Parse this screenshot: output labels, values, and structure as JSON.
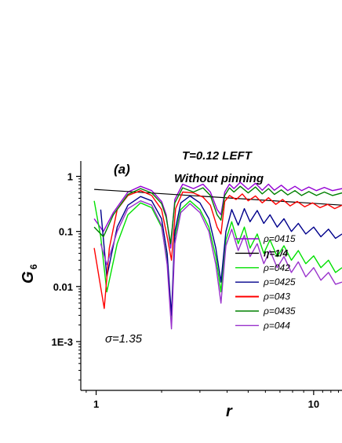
{
  "chart_data": {
    "type": "line",
    "panel_label": "(a)",
    "title_line1": "T=0.12 LEFT",
    "title_line2": "Without pinning",
    "xlabel_main": "r",
    "ylabel_main": "G",
    "ylabel_sub": "6",
    "annotation": "σ=1.35",
    "x_scale": "log",
    "y_scale": "log",
    "xlim": [
      0.85,
      13.5
    ],
    "ylim": [
      0.00013,
      1.9
    ],
    "x_ticks": [
      {
        "value": 1,
        "label": "1"
      },
      {
        "value": 10,
        "label": "10"
      }
    ],
    "y_ticks": [
      {
        "value": 1,
        "label": "1"
      },
      {
        "value": 0.1,
        "label": "0.1"
      },
      {
        "value": 0.01,
        "label": "0.01"
      },
      {
        "value": 0.001,
        "label": "1E-3"
      }
    ],
    "legend_position": "bottom-right",
    "series": [
      {
        "name": "ρ=0415",
        "color": "#9400d3",
        "x": [
          0.98,
          1.08,
          1.2,
          1.4,
          1.6,
          1.8,
          2.0,
          2.1,
          2.2,
          2.3,
          2.5,
          2.8,
          3.1,
          3.35,
          3.6,
          3.75,
          3.9,
          4.1,
          4.3,
          4.6,
          5.0,
          5.4,
          5.8,
          6.2,
          6.6,
          7.1,
          7.6,
          8.2,
          8.8,
          9.5,
          10.3,
          11.2,
          12.2,
          13.5
        ],
        "y": [
          0.17,
          0.1,
          0.22,
          0.52,
          0.66,
          0.55,
          0.35,
          0.2,
          0.05,
          0.38,
          0.72,
          0.6,
          0.72,
          0.52,
          0.25,
          0.2,
          0.52,
          0.72,
          0.6,
          0.78,
          0.58,
          0.75,
          0.56,
          0.72,
          0.56,
          0.69,
          0.55,
          0.66,
          0.55,
          0.64,
          0.55,
          0.63,
          0.55,
          0.6
        ]
      },
      {
        "name": "η=1/4",
        "color": "#000000",
        "x": [
          0.98,
          13.5
        ],
        "y": [
          0.58,
          0.3
        ]
      },
      {
        "name": "ρ=042",
        "color": "#00e000",
        "x": [
          0.98,
          1.05,
          1.12,
          1.25,
          1.4,
          1.6,
          1.8,
          2.0,
          2.12,
          2.22,
          2.3,
          2.45,
          2.7,
          3.0,
          3.3,
          3.55,
          3.75,
          3.95,
          4.2,
          4.5,
          4.8,
          5.1,
          5.5,
          5.9,
          6.3,
          6.8,
          7.3,
          7.9,
          8.5,
          9.2,
          10.0,
          10.8,
          11.7,
          12.6,
          13.5
        ],
        "y": [
          0.36,
          0.08,
          0.008,
          0.06,
          0.2,
          0.33,
          0.27,
          0.12,
          0.03,
          0.0025,
          0.08,
          0.25,
          0.36,
          0.25,
          0.12,
          0.035,
          0.008,
          0.07,
          0.15,
          0.06,
          0.12,
          0.05,
          0.09,
          0.04,
          0.07,
          0.035,
          0.055,
          0.03,
          0.045,
          0.026,
          0.036,
          0.022,
          0.03,
          0.018,
          0.022
        ]
      },
      {
        "name": "ρ=0425",
        "color": "#00008b",
        "x": [
          1.05,
          1.12,
          1.25,
          1.4,
          1.6,
          1.8,
          2.0,
          2.12,
          2.22,
          2.3,
          2.45,
          2.7,
          3.0,
          3.3,
          3.55,
          3.75,
          3.95,
          4.2,
          4.5,
          4.8,
          5.1,
          5.5,
          5.9,
          6.3,
          6.8,
          7.3,
          7.9,
          8.5,
          9.2,
          10.0,
          10.8,
          11.7,
          12.6,
          13.5
        ],
        "y": [
          0.25,
          0.015,
          0.12,
          0.3,
          0.43,
          0.36,
          0.17,
          0.04,
          0.003,
          0.1,
          0.33,
          0.44,
          0.33,
          0.17,
          0.05,
          0.012,
          0.1,
          0.25,
          0.13,
          0.26,
          0.15,
          0.24,
          0.14,
          0.2,
          0.12,
          0.17,
          0.1,
          0.14,
          0.09,
          0.12,
          0.08,
          0.11,
          0.075,
          0.09
        ]
      },
      {
        "name": "ρ=043",
        "color": "#ff0000",
        "x": [
          0.98,
          1.04,
          1.09,
          1.15,
          1.25,
          1.4,
          1.6,
          1.8,
          2.0,
          2.12,
          2.22,
          2.32,
          2.5,
          2.8,
          3.1,
          3.35,
          3.6,
          3.75,
          3.9,
          4.1,
          4.4,
          4.7,
          5.0,
          5.4,
          5.8,
          6.2,
          6.7,
          7.2,
          7.8,
          8.4,
          9.1,
          9.9,
          10.7,
          11.6,
          12.5,
          13.5
        ],
        "y": [
          0.05,
          0.012,
          0.004,
          0.05,
          0.25,
          0.45,
          0.55,
          0.45,
          0.25,
          0.08,
          0.03,
          0.26,
          0.52,
          0.5,
          0.42,
          0.3,
          0.12,
          0.09,
          0.35,
          0.45,
          0.38,
          0.48,
          0.36,
          0.44,
          0.33,
          0.41,
          0.31,
          0.38,
          0.29,
          0.35,
          0.28,
          0.33,
          0.27,
          0.31,
          0.26,
          0.3
        ]
      },
      {
        "name": "ρ=0435",
        "color": "#008000",
        "x": [
          0.98,
          1.08,
          1.2,
          1.4,
          1.6,
          1.8,
          2.0,
          2.1,
          2.2,
          2.3,
          2.5,
          2.8,
          3.1,
          3.35,
          3.6,
          3.75,
          3.9,
          4.1,
          4.3,
          4.6,
          5.0,
          5.4,
          5.8,
          6.2,
          6.6,
          7.1,
          7.6,
          8.2,
          8.8,
          9.5,
          10.3,
          11.2,
          12.2,
          13.5
        ],
        "y": [
          0.12,
          0.08,
          0.2,
          0.47,
          0.6,
          0.5,
          0.32,
          0.18,
          0.06,
          0.33,
          0.62,
          0.52,
          0.62,
          0.45,
          0.2,
          0.16,
          0.45,
          0.62,
          0.52,
          0.66,
          0.5,
          0.64,
          0.48,
          0.6,
          0.47,
          0.57,
          0.46,
          0.55,
          0.45,
          0.53,
          0.45,
          0.52,
          0.45,
          0.5
        ]
      },
      {
        "name": "ρ=044",
        "color": "#9932cc",
        "x": [
          1.05,
          1.12,
          1.25,
          1.4,
          1.6,
          1.8,
          2.0,
          2.12,
          2.22,
          2.3,
          2.45,
          2.7,
          3.0,
          3.3,
          3.55,
          3.75,
          3.95,
          4.2,
          4.5,
          4.8,
          5.1,
          5.5,
          5.9,
          6.3,
          6.8,
          7.3,
          7.9,
          8.5,
          9.2,
          10.0,
          10.8,
          11.7,
          12.6,
          13.5
        ],
        "y": [
          0.06,
          0.025,
          0.1,
          0.26,
          0.36,
          0.3,
          0.13,
          0.025,
          0.0017,
          0.06,
          0.22,
          0.32,
          0.22,
          0.1,
          0.025,
          0.005,
          0.055,
          0.11,
          0.045,
          0.085,
          0.035,
          0.06,
          0.026,
          0.045,
          0.022,
          0.035,
          0.018,
          0.028,
          0.015,
          0.022,
          0.013,
          0.018,
          0.011,
          0.012
        ]
      }
    ]
  }
}
